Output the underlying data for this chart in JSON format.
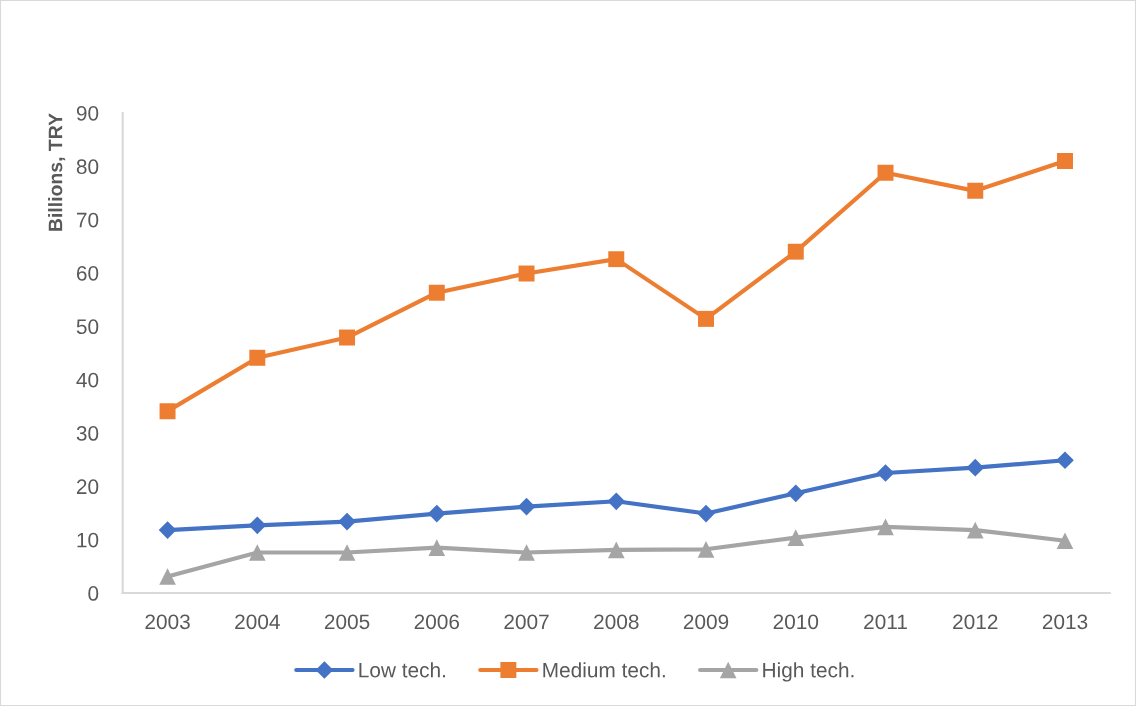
{
  "chart_data": {
    "type": "line",
    "ylabel": "Billions, TRY",
    "categories": [
      "2003",
      "2004",
      "2005",
      "2006",
      "2007",
      "2008",
      "2009",
      "2010",
      "2011",
      "2012",
      "2013"
    ],
    "series": [
      {
        "name": "Low tech.",
        "color": "#4472c4",
        "marker": "diamond",
        "values": [
          11.8,
          12.7,
          13.4,
          14.9,
          16.2,
          17.2,
          14.9,
          18.7,
          22.5,
          23.5,
          24.9
        ]
      },
      {
        "name": "Medium tech.",
        "color": "#ed7d31",
        "marker": "square",
        "values": [
          34.1,
          44.1,
          47.9,
          56.3,
          59.9,
          62.6,
          51.4,
          64.0,
          78.8,
          75.4,
          81.0
        ]
      },
      {
        "name": "High tech.",
        "color": "#a5a5a5",
        "marker": "triangle",
        "values": [
          3.1,
          7.6,
          7.6,
          8.5,
          7.6,
          8.1,
          8.2,
          10.4,
          12.4,
          11.8,
          9.8
        ]
      }
    ],
    "ylim": [
      0,
      90
    ],
    "yticks": [
      0,
      10,
      20,
      30,
      40,
      50,
      60,
      70,
      80,
      90
    ],
    "legend": "bottom",
    "line_style": "solid"
  }
}
